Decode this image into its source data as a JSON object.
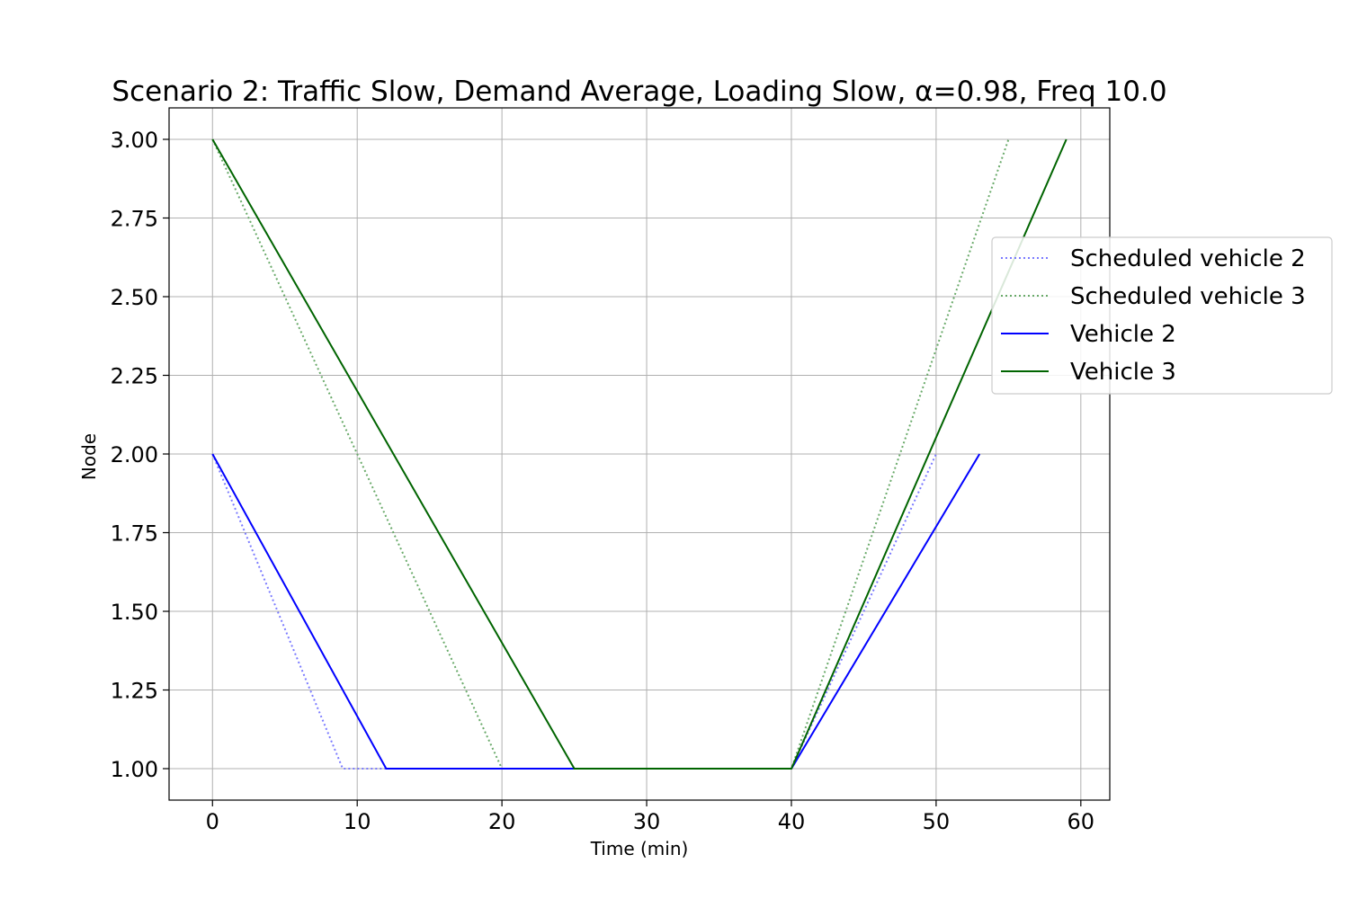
{
  "chart_data": {
    "type": "line",
    "title": "Scenario 2: Traffic Slow, Demand Average, Loading Slow, α=0.98, Freq 10.0",
    "xlabel": "Time (min)",
    "ylabel": "Node",
    "xlim": [
      -3,
      62
    ],
    "ylim": [
      0.9,
      3.1
    ],
    "xticks": [
      0,
      10,
      20,
      30,
      40,
      50,
      60
    ],
    "xtick_labels": [
      "0",
      "10",
      "20",
      "30",
      "40",
      "50",
      "60"
    ],
    "yticks": [
      1.0,
      1.25,
      1.5,
      1.75,
      2.0,
      2.25,
      2.5,
      2.75,
      3.0
    ],
    "ytick_labels": [
      "1.00",
      "1.25",
      "1.50",
      "1.75",
      "2.00",
      "2.25",
      "2.50",
      "2.75",
      "3.00"
    ],
    "grid": true,
    "legend_position": "right",
    "series": [
      {
        "name": "Scheduled vehicle 2",
        "style": "dotted",
        "color": "#7b7bff",
        "points": [
          [
            0,
            2
          ],
          [
            9,
            1
          ],
          [
            40,
            1
          ],
          [
            50,
            2
          ]
        ]
      },
      {
        "name": "Scheduled vehicle 3",
        "style": "dotted",
        "color": "#6aaa6a",
        "points": [
          [
            0,
            3
          ],
          [
            20,
            1
          ],
          [
            40,
            1
          ],
          [
            55,
            3
          ]
        ]
      },
      {
        "name": "Vehicle 2",
        "style": "solid",
        "color": "#0000ff",
        "points": [
          [
            0,
            2
          ],
          [
            12,
            1
          ],
          [
            40,
            1
          ],
          [
            53,
            2
          ]
        ]
      },
      {
        "name": "Vehicle 3",
        "style": "solid",
        "color": "#006400",
        "points": [
          [
            0,
            3
          ],
          [
            25,
            1
          ],
          [
            40,
            1
          ],
          [
            59,
            3
          ]
        ]
      }
    ]
  }
}
